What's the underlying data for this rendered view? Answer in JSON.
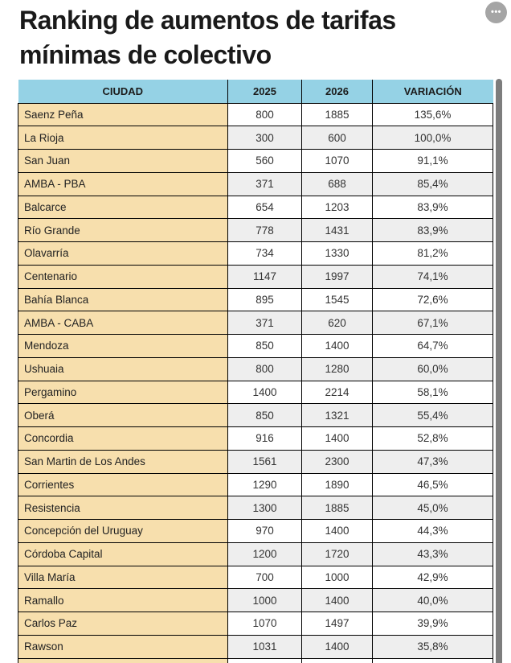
{
  "title": "Ranking de aumentos de tarifas mínimas de colectivo",
  "menu": {
    "ellipsis_icon": "•••"
  },
  "chart_data": {
    "type": "table",
    "title": "Ranking de aumentos de tarifas mínimas de colectivo",
    "columns": [
      "CIUDAD",
      "2025",
      "2026",
      "VARIACIÓN"
    ],
    "rows": [
      [
        "Saenz Peña",
        "800",
        "1885",
        "135,6%"
      ],
      [
        "La Rioja",
        "300",
        "600",
        "100,0%"
      ],
      [
        "San Juan",
        "560",
        "1070",
        "91,1%"
      ],
      [
        "AMBA - PBA",
        "371",
        "688",
        "85,4%"
      ],
      [
        "Balcarce",
        "654",
        "1203",
        "83,9%"
      ],
      [
        "Río Grande",
        "778",
        "1431",
        "83,9%"
      ],
      [
        "Olavarría",
        "734",
        "1330",
        "81,2%"
      ],
      [
        "Centenario",
        "1147",
        "1997",
        "74,1%"
      ],
      [
        "Bahía Blanca",
        "895",
        "1545",
        "72,6%"
      ],
      [
        "AMBA - CABA",
        "371",
        "620",
        "67,1%"
      ],
      [
        "Mendoza",
        "850",
        "1400",
        "64,7%"
      ],
      [
        "Ushuaia",
        "800",
        "1280",
        "60,0%"
      ],
      [
        "Pergamino",
        "1400",
        "2214",
        "58,1%"
      ],
      [
        "Oberá",
        "850",
        "1321",
        "55,4%"
      ],
      [
        "Concordia",
        "916",
        "1400",
        "52,8%"
      ],
      [
        "San Martin de Los Andes",
        "1561",
        "2300",
        "47,3%"
      ],
      [
        "Corrientes",
        "1290",
        "1890",
        "46,5%"
      ],
      [
        "Resistencia",
        "1300",
        "1885",
        "45,0%"
      ],
      [
        "Concepción del Uruguay",
        "970",
        "1400",
        "44,3%"
      ],
      [
        "Córdoba Capital",
        "1200",
        "1720",
        "43,3%"
      ],
      [
        "Villa María",
        "700",
        "1000",
        "42,9%"
      ],
      [
        "Ramallo",
        "1000",
        "1400",
        "40,0%"
      ],
      [
        "Carlos Paz",
        "1070",
        "1497",
        "39,9%"
      ],
      [
        "Rawson",
        "1031",
        "1400",
        "35,8%"
      ]
    ],
    "partial_row": [
      "",
      "",
      "",
      ""
    ]
  },
  "colors": {
    "header_blue": "#95d2e5",
    "city_tan": "#f7dfad",
    "alt_grey": "#eeeeee",
    "border_black": "#000000",
    "scrollbar_grey": "#7d7d7d",
    "ellipsis_bg": "#a5a5a5",
    "title_text": "#1a1a1a"
  }
}
